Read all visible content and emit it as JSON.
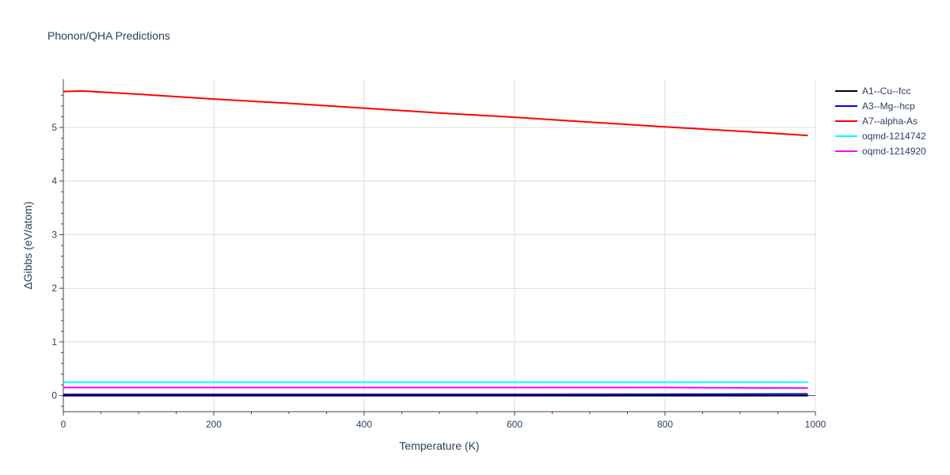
{
  "chart_data": {
    "type": "line",
    "title": "Phonon/QHA Predictions",
    "xlabel": "Temperature (K)",
    "ylabel": "ΔGibbs (eV/atom)",
    "xlim": [
      0,
      1000
    ],
    "ylim": [
      -0.3,
      5.9
    ],
    "x_ticks": [
      0,
      200,
      400,
      600,
      800,
      1000
    ],
    "y_ticks": [
      0,
      1,
      2,
      3,
      4,
      5
    ],
    "grid": true,
    "legend_position": "right",
    "series": [
      {
        "name": "A1--Cu--fcc",
        "color": "#000000",
        "x": [
          0,
          990
        ],
        "y": [
          0,
          0
        ]
      },
      {
        "name": "A3--Mg--hcp",
        "color": "#0000ff",
        "x": [
          0,
          200,
          400,
          600,
          800,
          990
        ],
        "y": [
          0.02,
          0.02,
          0.02,
          0.02,
          0.025,
          0.03
        ]
      },
      {
        "name": "A7--alpha-As",
        "color": "#ff0000",
        "x": [
          0,
          25,
          100,
          200,
          300,
          400,
          500,
          600,
          700,
          800,
          900,
          990
        ],
        "y": [
          5.67,
          5.68,
          5.62,
          5.53,
          5.45,
          5.36,
          5.27,
          5.19,
          5.1,
          5.01,
          4.93,
          4.85
        ]
      },
      {
        "name": "oqmd-1214742",
        "color": "#00ffff",
        "x": [
          0,
          200,
          400,
          600,
          800,
          990
        ],
        "y": [
          0.25,
          0.25,
          0.25,
          0.25,
          0.25,
          0.25
        ]
      },
      {
        "name": "oqmd-1214920",
        "color": "#ff00ff",
        "x": [
          0,
          200,
          400,
          600,
          800,
          990
        ],
        "y": [
          0.15,
          0.15,
          0.15,
          0.15,
          0.15,
          0.14
        ]
      }
    ]
  }
}
